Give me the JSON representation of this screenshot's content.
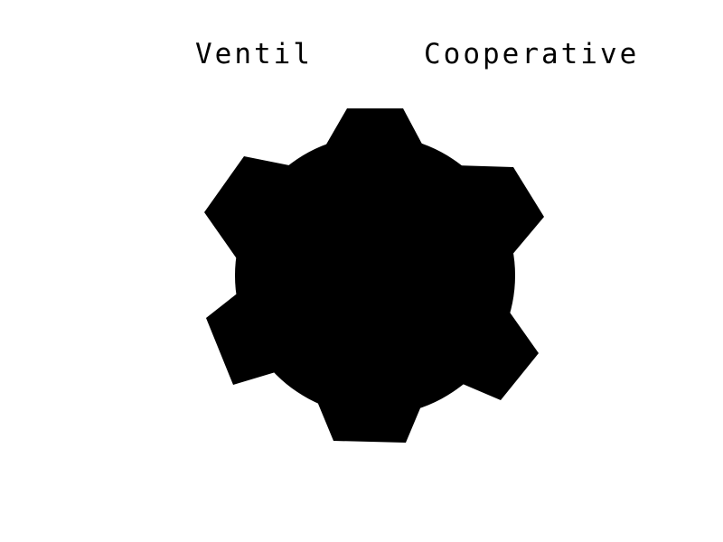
{
  "labels": {
    "left": "Ventil",
    "right": "Cooperative"
  },
  "gear": {
    "icon": "gear-icon",
    "fill": "#000000",
    "background": "#ffffff"
  }
}
